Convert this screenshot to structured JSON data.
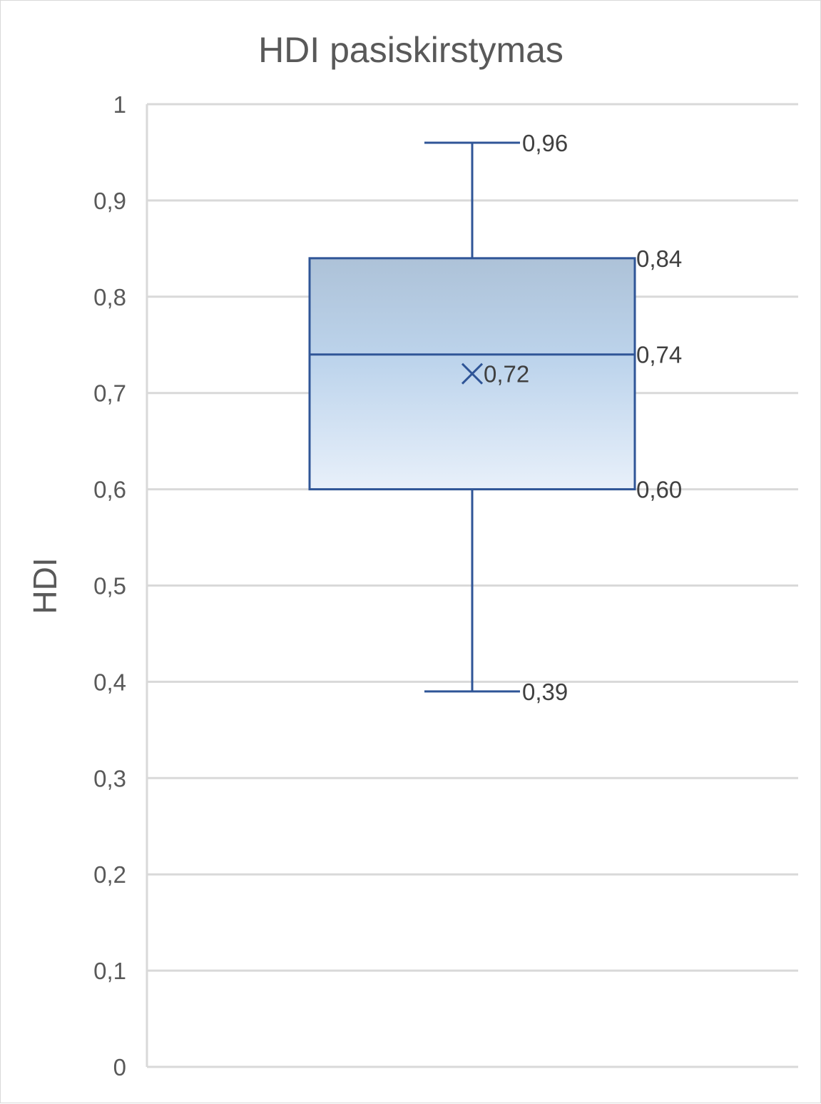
{
  "chart_data": {
    "type": "box",
    "title": "HDI pasiskirstymas",
    "xlabel": "",
    "ylabel": "HDI",
    "ylim": [
      0,
      1
    ],
    "y_ticks": [
      0,
      0.1,
      0.2,
      0.3,
      0.4,
      0.5,
      0.6,
      0.7,
      0.8,
      0.9,
      1
    ],
    "y_tick_labels": [
      "0",
      "0,1",
      "0,2",
      "0,3",
      "0,4",
      "0,5",
      "0,6",
      "0,7",
      "0,8",
      "0,9",
      "1"
    ],
    "grid": true,
    "legend": "none",
    "box": {
      "whisker_high": 0.96,
      "q3": 0.84,
      "median": 0.74,
      "mean": 0.72,
      "q1": 0.6,
      "whisker_low": 0.39
    },
    "data_labels": {
      "whisker_high": "0,96",
      "q3": "0,84",
      "median": "0,74",
      "mean": "0,72",
      "q1": "0,60",
      "whisker_low": "0,39"
    },
    "colors": {
      "box_stroke": "#2f5597",
      "box_fill_top": "#adc2d8",
      "box_fill_bottom": "#e8f0fa",
      "grid": "#d9d9d9",
      "text": "#595959"
    }
  }
}
